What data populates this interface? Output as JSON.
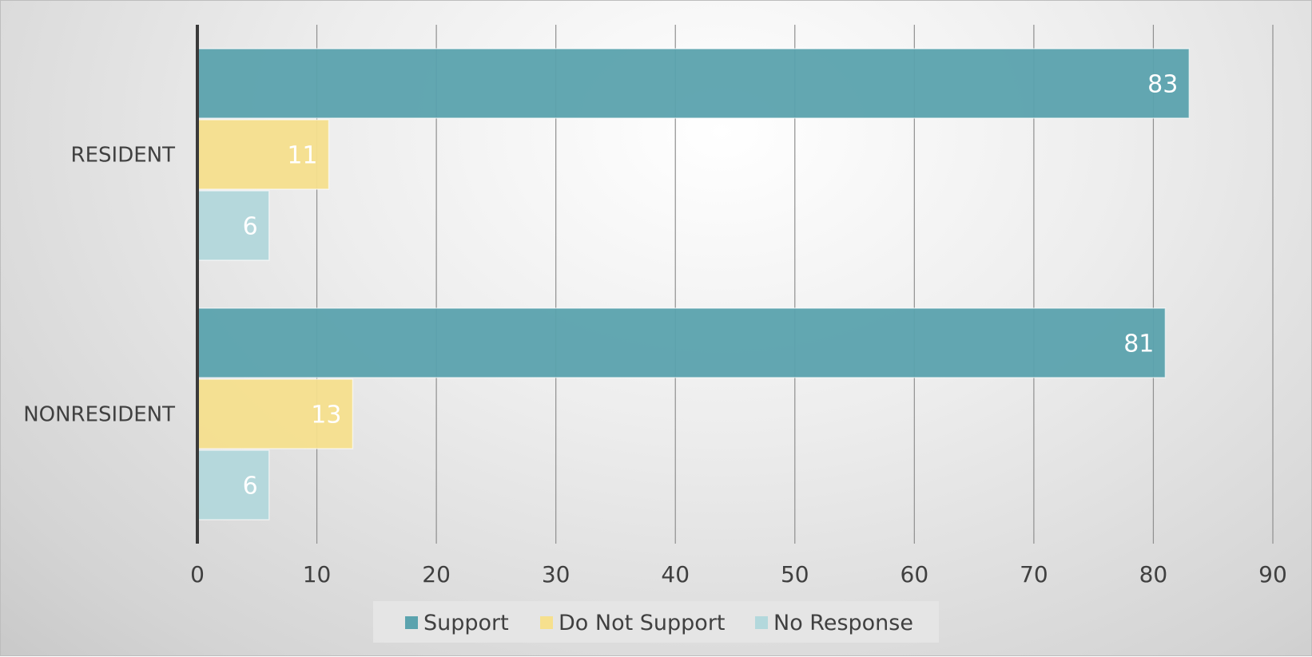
{
  "chart_data": {
    "type": "bar",
    "orientation": "horizontal",
    "categories": [
      "RESIDENT",
      "NONRESIDENT"
    ],
    "series": [
      {
        "name": "Support",
        "color": "#5ba3ae",
        "values": [
          83,
          81
        ]
      },
      {
        "name": "Do Not Support",
        "color": "#f6e08e",
        "values": [
          11,
          13
        ]
      },
      {
        "name": "No Response",
        "color": "#b3d8dc",
        "values": [
          6,
          6
        ]
      }
    ],
    "xlim": [
      0,
      90
    ],
    "xticks": [
      0,
      10,
      20,
      30,
      40,
      50,
      60,
      70,
      80,
      90
    ],
    "grid": true,
    "legend_position": "bottom",
    "data_labels": true
  }
}
